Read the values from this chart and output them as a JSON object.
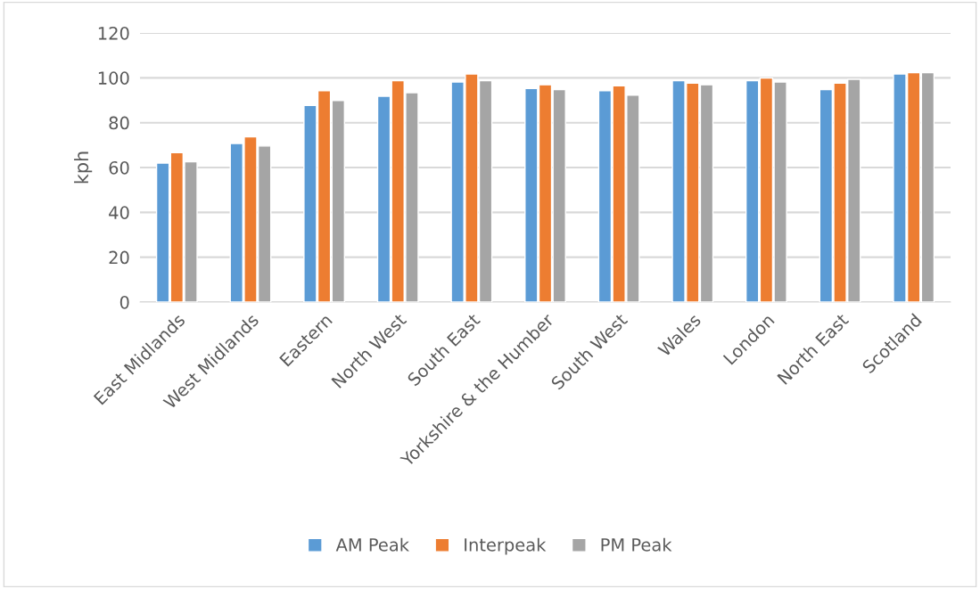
{
  "chart_data": {
    "type": "bar",
    "ylabel": "kph",
    "categories": [
      "East Midlands",
      "West Midlands",
      "Eastern",
      "North West",
      "South East",
      "Yorkshire & the Humber",
      "South West",
      "Wales",
      "London",
      "North East",
      "Scotland"
    ],
    "series": [
      {
        "name": "AM Peak",
        "color": "#5b9bd5",
        "values": [
          62,
          70.7,
          87.7,
          91.8,
          98.1,
          95.2,
          94.2,
          98.7,
          98.7,
          94.7,
          101.7
        ]
      },
      {
        "name": "Interpeak",
        "color": "#ed7d31",
        "values": [
          66.6,
          73.7,
          94.2,
          98.7,
          101.7,
          96.9,
          96.4,
          97.6,
          99.9,
          97.6,
          102.3
        ]
      },
      {
        "name": "PM Peak",
        "color": "#a5a5a5",
        "values": [
          62.6,
          69.6,
          89.9,
          93.4,
          98.7,
          94.7,
          92.3,
          96.9,
          98.1,
          99.3,
          102.3
        ]
      }
    ],
    "ylim": [
      0,
      120
    ],
    "yticks": [
      0,
      20,
      40,
      60,
      80,
      100,
      120
    ],
    "grid": "y",
    "legend": "bottom"
  }
}
